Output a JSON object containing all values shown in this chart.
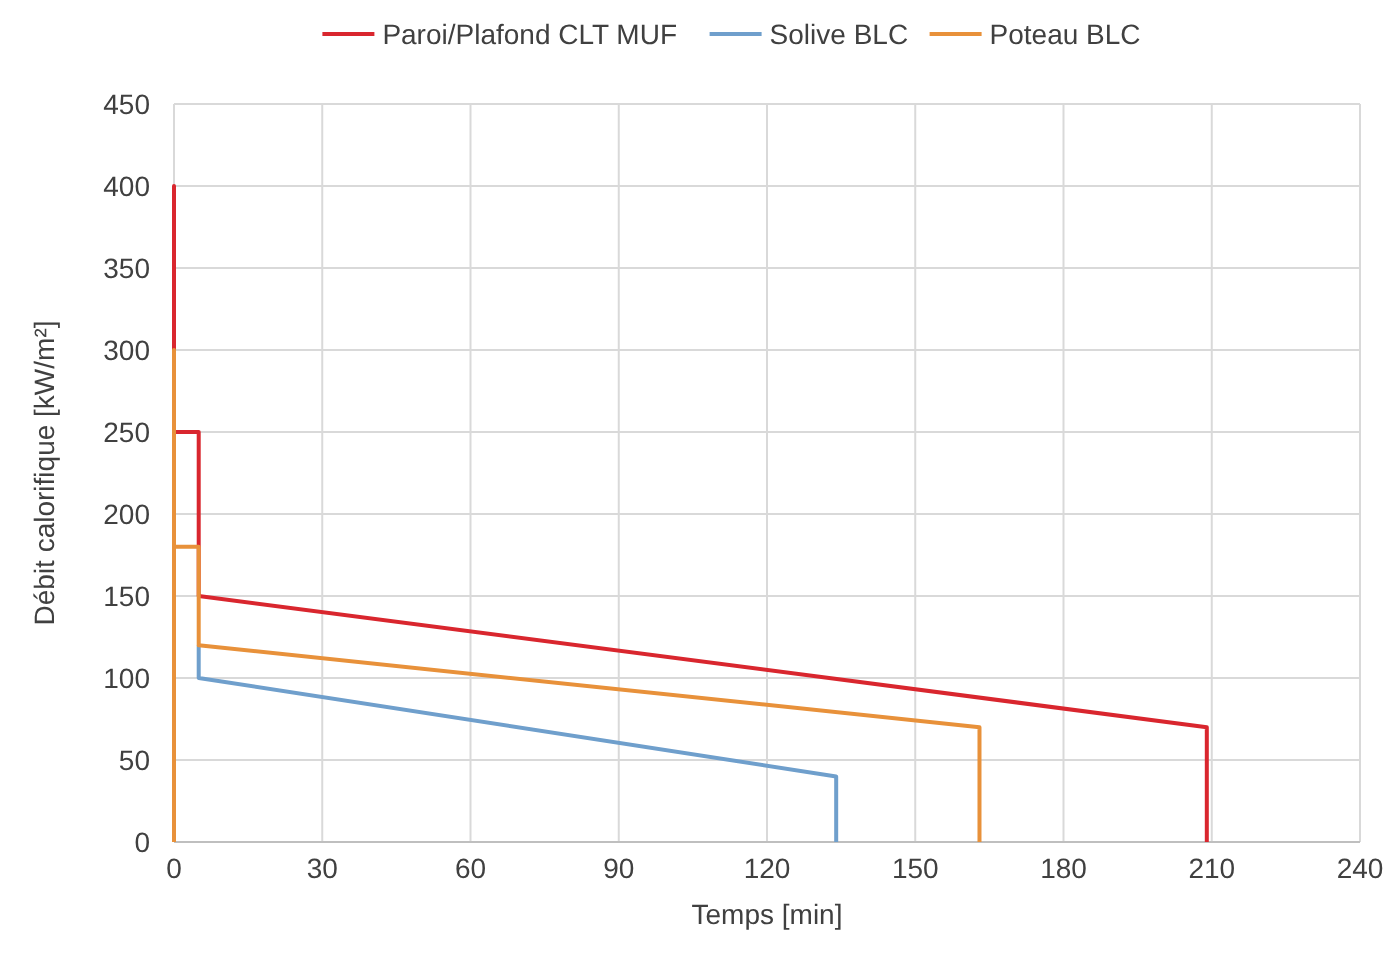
{
  "chart_data": {
    "type": "line",
    "xlabel": "Temps [min]",
    "ylabel": "Débit calorifique [kW/m²]",
    "xlim": [
      0,
      240
    ],
    "xticks": [
      0,
      30,
      60,
      90,
      120,
      150,
      180,
      210,
      240
    ],
    "ylim": [
      0,
      450
    ],
    "yticks": [
      0,
      50,
      100,
      150,
      200,
      250,
      300,
      350,
      400,
      450
    ],
    "grid": true,
    "legend": "top",
    "marker": "none",
    "line_style": "solid",
    "series": [
      {
        "name": "Paroi/Plafond CLT MUF",
        "color": "#d9262e",
        "x": [
          0,
          0,
          0,
          5,
          5,
          209,
          209
        ],
        "values": [
          0,
          400,
          250,
          250,
          150,
          70,
          0
        ]
      },
      {
        "name": "Solive BLC",
        "color": "#6f9fcc",
        "x": [
          5,
          5,
          134,
          134
        ],
        "values": [
          120,
          100,
          40,
          0
        ]
      },
      {
        "name": "Poteau BLC",
        "color": "#e8913a",
        "x": [
          0,
          0,
          0,
          5,
          5,
          163,
          163
        ],
        "values": [
          0,
          300,
          180,
          180,
          120,
          70,
          0
        ]
      }
    ]
  }
}
